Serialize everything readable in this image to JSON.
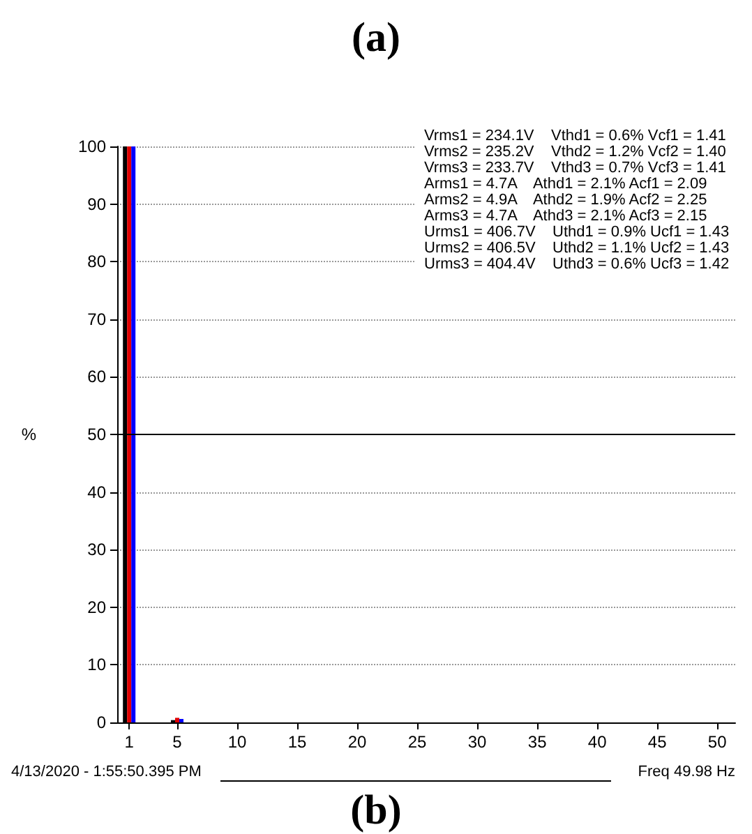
{
  "chart_data": {
    "type": "bar",
    "ylabel": "%",
    "x": [
      1,
      5
    ],
    "series": [
      {
        "color": "#000000",
        "values": [
          100,
          0.4
        ]
      },
      {
        "color": "#e00000",
        "values": [
          100,
          0.8
        ]
      },
      {
        "color": "#0000ff",
        "values": [
          100,
          0.6
        ]
      }
    ],
    "xlim": [
      0,
      51.5
    ],
    "xticks": [
      1,
      5,
      10,
      15,
      20,
      25,
      30,
      35,
      40,
      45,
      50
    ],
    "ylim": [
      0,
      100
    ],
    "yticks": [
      0,
      10,
      20,
      30,
      40,
      50,
      60,
      70,
      80,
      90,
      100
    ],
    "grid": "y",
    "ref_lines": [
      {
        "axis": "y",
        "value": 50,
        "color": "#000000"
      }
    ],
    "annotations": [
      "(a)",
      "Vrms1 = 234.1V    Vthd1 = 0.6% Vcf1 = 1.41",
      "Vrms2 = 235.2V    Vthd2 = 1.2% Vcf2 = 1.40",
      "Vrms3 = 233.7V    Vthd3 = 0.7% Vcf3 = 1.41",
      "Arms1 = 4.7A    Athd1 = 2.1% Acf1 = 2.09",
      "Arms2 = 4.9A    Athd2 = 1.9% Acf2 = 2.25",
      "Arms3 = 4.7A    Athd3 = 2.1% Acf3 = 2.15",
      "Urms1 = 406.7V    Uthd1 = 0.9% Ucf1 = 1.43",
      "Urms2 = 406.5V    Uthd2 = 1.1% Ucf2 = 1.43",
      "Urms3 = 404.4V    Uthd3 = 0.6% Ucf3 = 1.42",
      "4/13/2020 - 1:55:50.395 PM",
      "Freq 49.98 Hz",
      "(b)"
    ]
  }
}
